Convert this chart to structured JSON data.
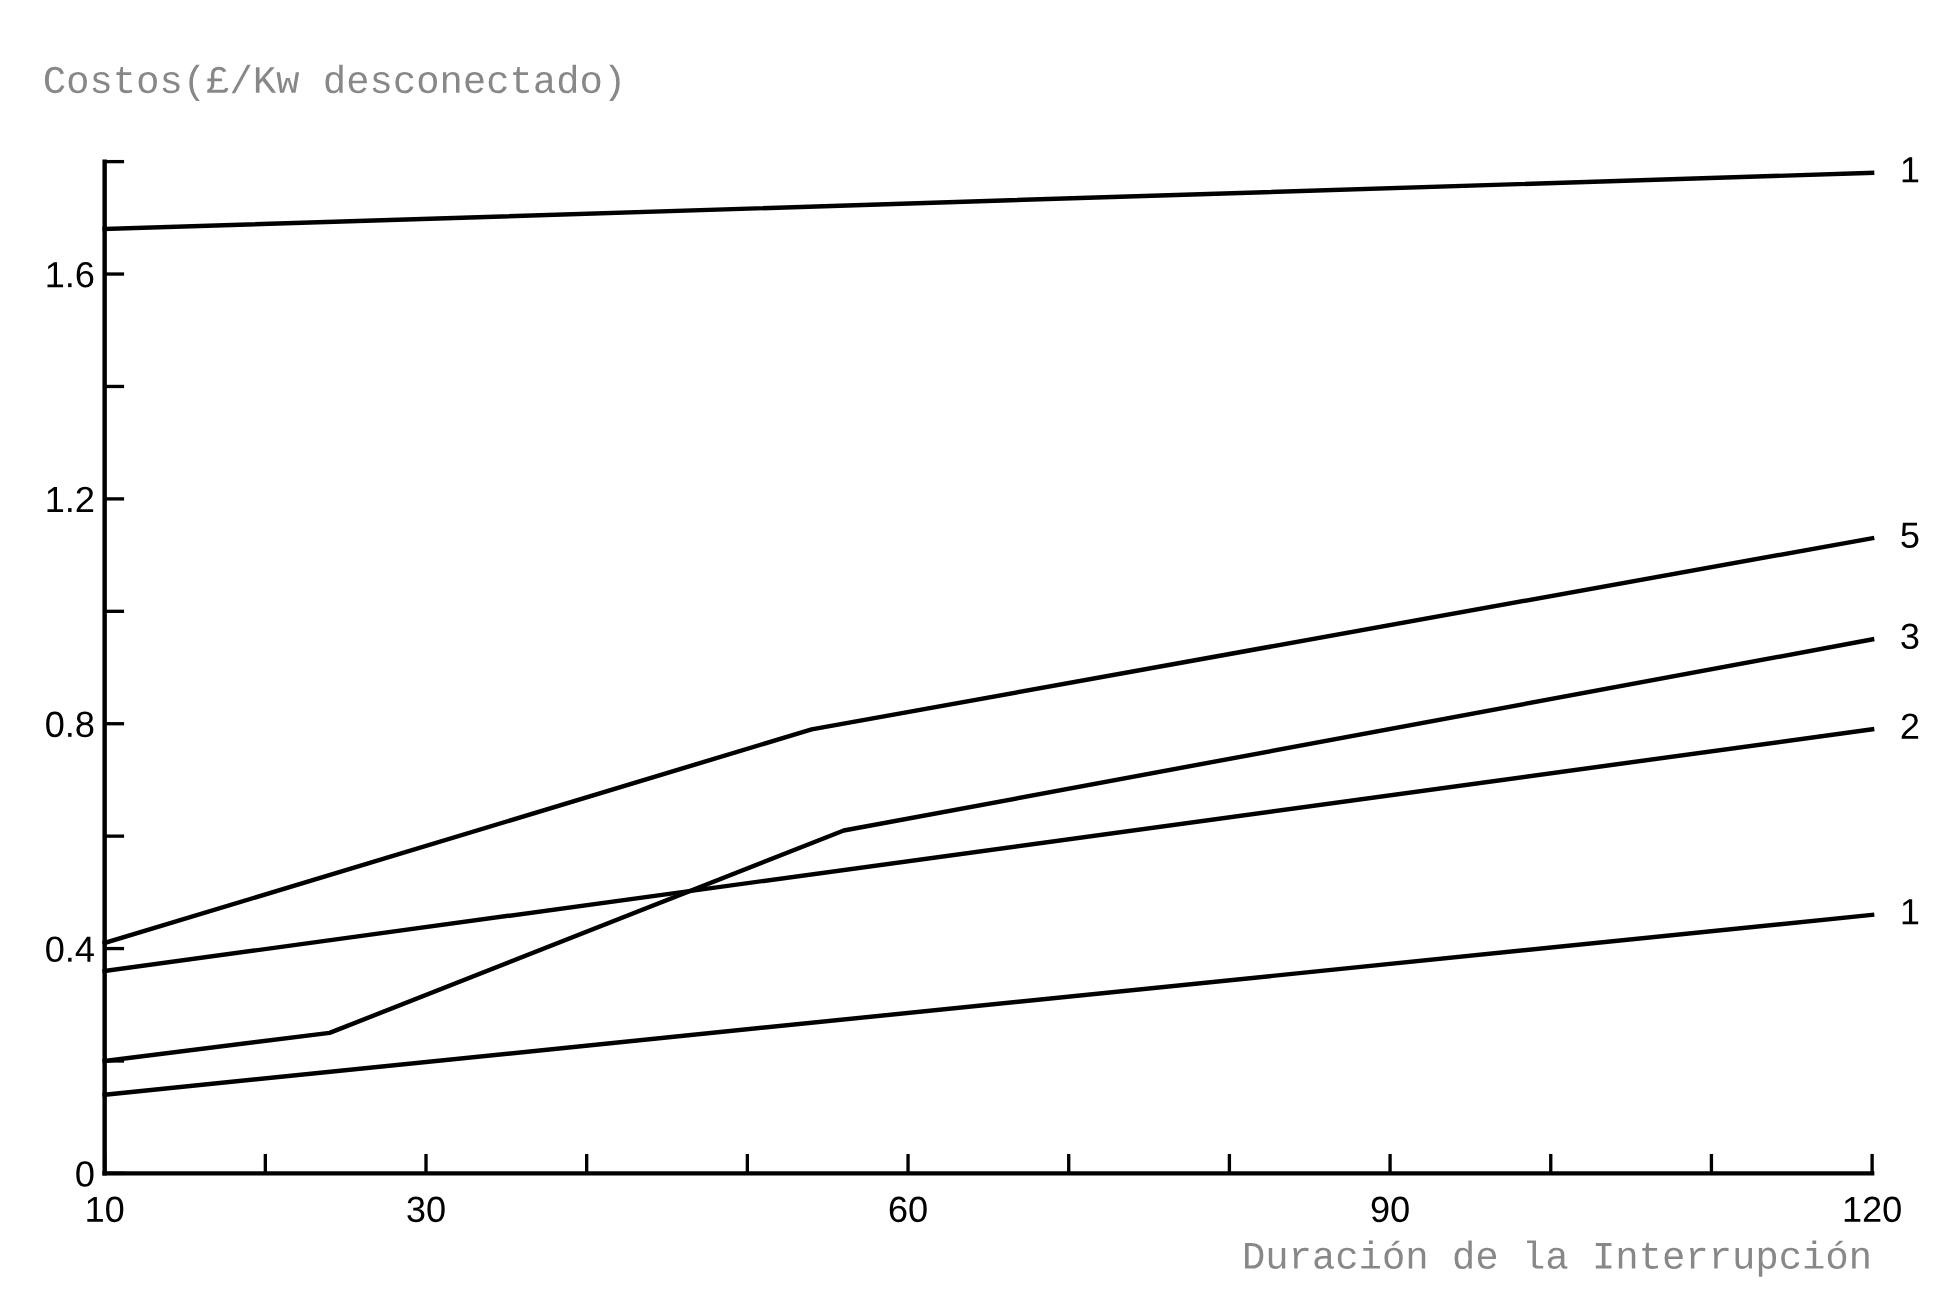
{
  "chart_data": {
    "type": "line",
    "ylabel": "Costos(£/Kw desconectado)",
    "xlabel": "Duración de la Interrupción",
    "xlim": [
      10,
      120
    ],
    "ylim": [
      0,
      1.8
    ],
    "xticks": [
      10,
      {
        "value": 20,
        "label": null
      },
      30,
      {
        "value": 40,
        "label": null
      },
      {
        "value": 50,
        "label": null
      },
      60,
      {
        "value": 70,
        "label": null
      },
      {
        "value": 80,
        "label": null
      },
      90,
      {
        "value": 100,
        "label": null
      },
      {
        "value": 110,
        "label": null
      },
      120
    ],
    "yticks": [
      0,
      {
        "value": 0.2,
        "label": null
      },
      {
        "value": 0.4,
        "label": "0.4"
      },
      {
        "value": 0.6,
        "label": null
      },
      {
        "value": 0.8,
        "label": "0.8"
      },
      {
        "value": 1.0,
        "label": null
      },
      {
        "value": 1.2,
        "label": "1.2"
      },
      {
        "value": 1.4,
        "label": null
      },
      {
        "value": 1.6,
        "label": "1.6"
      },
      {
        "value": 1.8,
        "label": null
      }
    ],
    "grid": false,
    "legend": false,
    "marker": "none",
    "line_style": "solid",
    "series": [
      {
        "name": "1",
        "color": "#000000",
        "x": [
          10,
          120
        ],
        "values": [
          1.68,
          1.78
        ]
      },
      {
        "name": "5",
        "color": "#000000",
        "x": [
          10,
          54,
          120
        ],
        "values": [
          0.41,
          0.79,
          1.13
        ]
      },
      {
        "name": "3",
        "color": "#000000",
        "x": [
          10,
          24,
          56,
          120
        ],
        "values": [
          0.2,
          0.25,
          0.61,
          0.95
        ]
      },
      {
        "name": "2",
        "color": "#000000",
        "x": [
          10,
          120
        ],
        "values": [
          0.36,
          0.79
        ]
      },
      {
        "name": "1",
        "color": "#000000",
        "x": [
          10,
          120
        ],
        "values": [
          0.14,
          0.46
        ]
      }
    ]
  }
}
